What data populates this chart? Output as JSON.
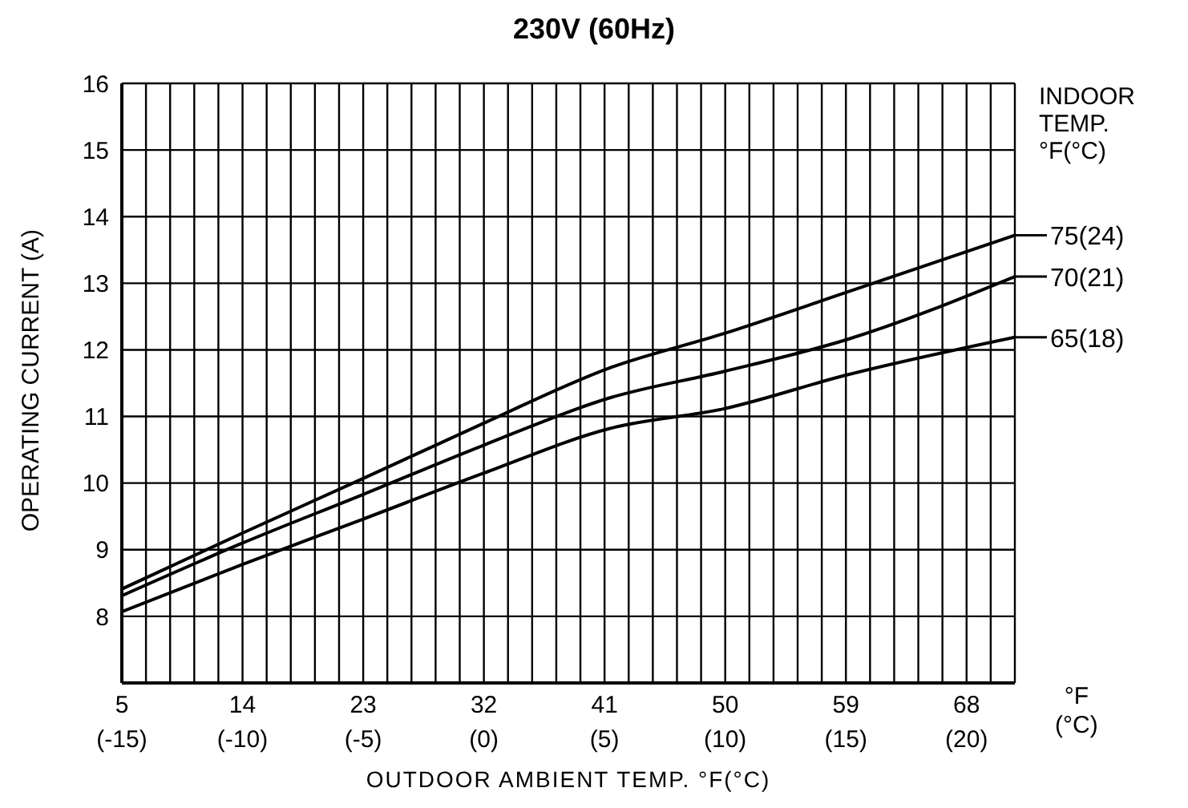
{
  "chart_data": {
    "type": "line",
    "title": "230V (60Hz)",
    "xlabel": "OUTDOOR AMBIENT TEMP. °F(°C)",
    "ylabel": "OPERATING CURRENT (A)",
    "legend_title": "INDOOR\nTEMP.\n°F(°C)",
    "annotations": [
      "°F\n(°C)"
    ],
    "x": [
      5,
      14,
      23,
      32,
      41.4,
      50,
      59,
      71.6
    ],
    "series": [
      {
        "name": "75(24)",
        "color": "#000000",
        "values": [
          8.41,
          9.25,
          10.07,
          10.9,
          11.73,
          12.25,
          12.86,
          13.72
        ]
      },
      {
        "name": "70(21)",
        "color": "#000000",
        "values": [
          8.31,
          9.1,
          9.83,
          10.57,
          11.28,
          11.68,
          12.15,
          13.1
        ]
      },
      {
        "name": "65(18)",
        "color": "#000000",
        "values": [
          8.07,
          8.78,
          9.46,
          10.15,
          10.82,
          11.12,
          11.62,
          12.19
        ]
      }
    ],
    "xlim": [
      5,
      71.6
    ],
    "xticks": [
      5,
      14,
      23,
      32,
      41,
      50,
      59,
      68
    ],
    "x2lim": [
      -15,
      22
    ],
    "x2ticks": [
      {
        "value": -15,
        "label": "(-15)"
      },
      {
        "value": -14,
        "label": null
      },
      {
        "value": -13,
        "label": null
      },
      {
        "value": -12,
        "label": null
      },
      {
        "value": -11,
        "label": null
      },
      {
        "value": -10,
        "label": "(-10)"
      },
      {
        "value": -9,
        "label": null
      },
      {
        "value": -8,
        "label": null
      },
      {
        "value": -7,
        "label": null
      },
      {
        "value": -6,
        "label": null
      },
      {
        "value": -5,
        "label": "(-5)"
      },
      {
        "value": -4,
        "label": null
      },
      {
        "value": -3,
        "label": null
      },
      {
        "value": -2,
        "label": null
      },
      {
        "value": -1,
        "label": null
      },
      {
        "value": 0,
        "label": "(0)"
      },
      {
        "value": 1,
        "label": null
      },
      {
        "value": 2,
        "label": null
      },
      {
        "value": 3,
        "label": null
      },
      {
        "value": 4,
        "label": null
      },
      {
        "value": 5,
        "label": "(5)"
      },
      {
        "value": 6,
        "label": null
      },
      {
        "value": 7,
        "label": null
      },
      {
        "value": 8,
        "label": null
      },
      {
        "value": 9,
        "label": null
      },
      {
        "value": 10,
        "label": "(10)"
      },
      {
        "value": 11,
        "label": null
      },
      {
        "value": 12,
        "label": null
      },
      {
        "value": 13,
        "label": null
      },
      {
        "value": 14,
        "label": null
      },
      {
        "value": 15,
        "label": "(15)"
      },
      {
        "value": 16,
        "label": null
      },
      {
        "value": 17,
        "label": null
      },
      {
        "value": 18,
        "label": null
      },
      {
        "value": 19,
        "label": null
      },
      {
        "value": 20,
        "label": "(20)"
      },
      {
        "value": 21,
        "label": null
      },
      {
        "value": 22,
        "label": null
      }
    ],
    "ylim": [
      7,
      16
    ],
    "yticks": [
      {
        "value": 7,
        "label": null
      },
      8,
      9,
      10,
      11,
      12,
      13,
      14,
      15,
      16
    ],
    "grid": true,
    "legend": "right",
    "marker": "none",
    "line_style": "solid"
  }
}
